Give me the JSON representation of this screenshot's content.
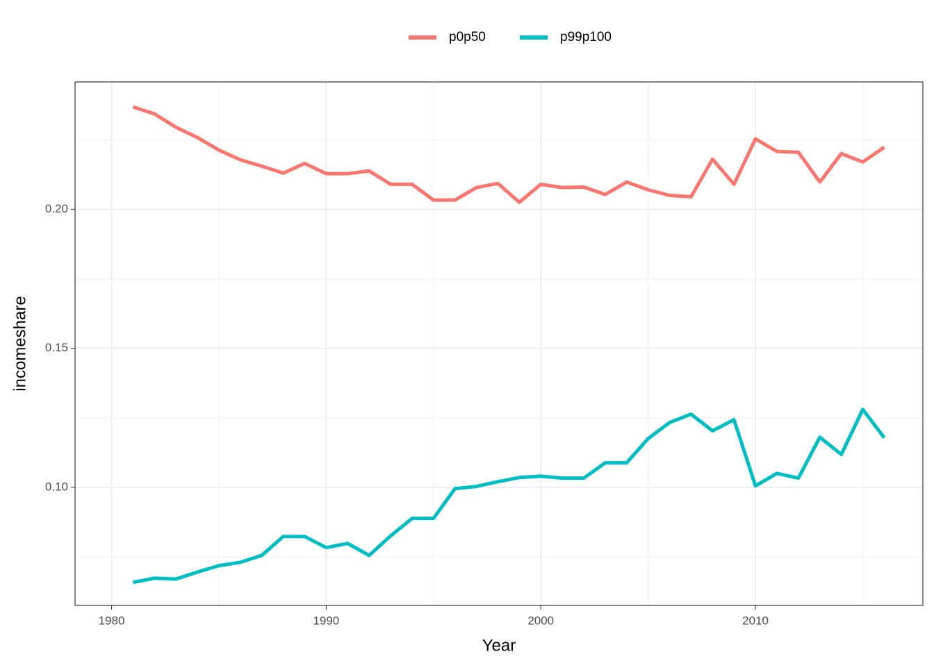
{
  "chart_data": {
    "type": "line",
    "x_label": "Year",
    "y_label": "incomeshare",
    "x": [
      1981,
      1982,
      1983,
      1984,
      1985,
      1986,
      1987,
      1988,
      1989,
      1990,
      1991,
      1992,
      1993,
      1994,
      1995,
      1996,
      1997,
      1998,
      1999,
      2000,
      2001,
      2002,
      2003,
      2004,
      2005,
      2006,
      2007,
      2008,
      2009,
      2010,
      2011,
      2012,
      2013,
      2014,
      2015,
      2016
    ],
    "series": [
      {
        "name": "p0p50",
        "color": "#f8766d",
        "values": [
          0.2368,
          0.2343,
          0.2295,
          0.2258,
          0.2213,
          0.2178,
          0.2155,
          0.213,
          0.2165,
          0.2128,
          0.2128,
          0.2138,
          0.209,
          0.209,
          0.2033,
          0.2033,
          0.2078,
          0.2093,
          0.2025,
          0.209,
          0.2078,
          0.208,
          0.2053,
          0.2098,
          0.207,
          0.205,
          0.2045,
          0.218,
          0.209,
          0.2253,
          0.2208,
          0.2205,
          0.2098,
          0.22,
          0.217,
          0.2223
        ]
      },
      {
        "name": "p99p100",
        "color": "#00bfc4",
        "values": [
          0.0658,
          0.0673,
          0.067,
          0.0695,
          0.0718,
          0.073,
          0.0755,
          0.0823,
          0.0823,
          0.0783,
          0.0798,
          0.0755,
          0.0825,
          0.0888,
          0.0888,
          0.0995,
          0.1003,
          0.102,
          0.1035,
          0.104,
          0.1033,
          0.1033,
          0.1088,
          0.1088,
          0.1175,
          0.1233,
          0.1263,
          0.1203,
          0.1243,
          0.1005,
          0.105,
          0.1033,
          0.118,
          0.1118,
          0.128,
          0.1178
        ]
      }
    ],
    "xlim": [
      1978.3,
      2017.8
    ],
    "ylim": [
      0.0575,
      0.2458
    ],
    "xticks": [
      1980,
      1990,
      2000,
      2010
    ],
    "yticks": [
      {
        "value": 0.1,
        "label": "0.10"
      },
      {
        "value": 0.15,
        "label": "0.15"
      },
      {
        "value": 0.2,
        "label": "0.20"
      }
    ],
    "minor_xticks": [
      1985,
      1995,
      2005,
      2015
    ],
    "minor_yticks": [
      0.075,
      0.125,
      0.175,
      0.225
    ],
    "grid": true,
    "legend_position": "top"
  }
}
